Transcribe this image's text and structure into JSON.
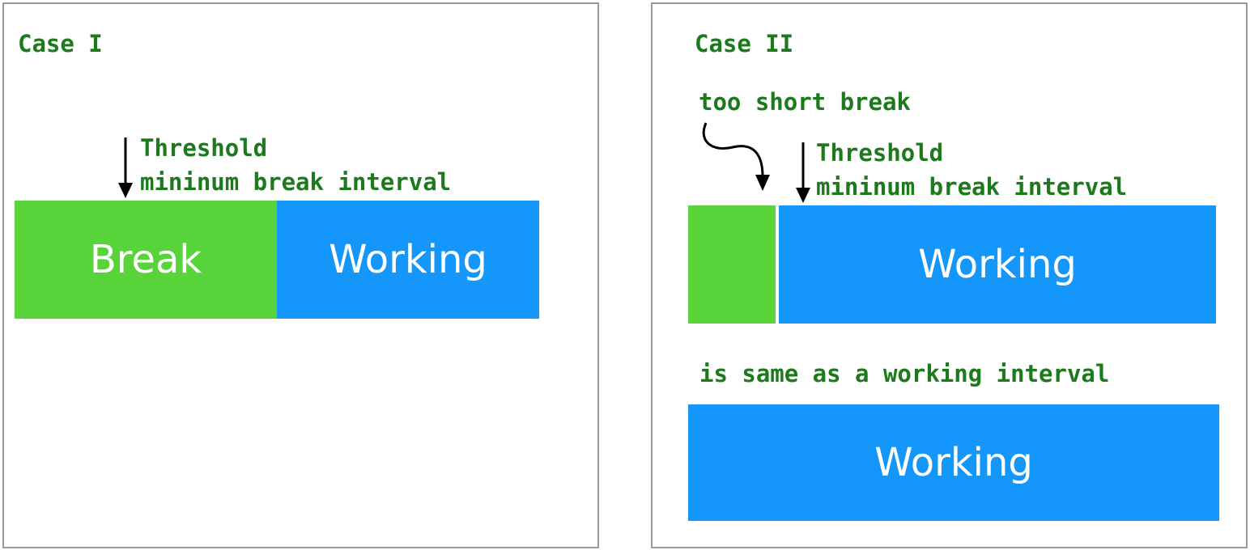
{
  "case1": {
    "title": "Case I",
    "threshold_line1": "Threshold",
    "threshold_line2": "mininum break interval",
    "break_label": "Break",
    "working_label": "Working"
  },
  "case2": {
    "title": "Case II",
    "too_short_label": "too short break",
    "threshold_line1": "Threshold",
    "threshold_line2": "mininum break interval",
    "working_label": "Working",
    "same_as_label": "is same as a working interval",
    "result_working_label": "Working"
  },
  "colors": {
    "label_green": "#1c7a1c",
    "break_green": "#58d43a",
    "working_blue": "#1496fb",
    "border_gray": "#9a9a9a"
  }
}
